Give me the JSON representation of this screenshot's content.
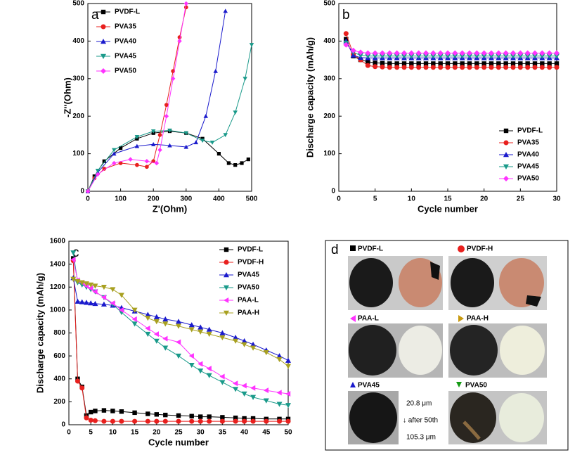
{
  "chart_data": [
    {
      "type": "line",
      "panel_label": "a",
      "x_label": "Z'(Ohm)",
      "y_label": "-Z''(Ohm)",
      "xlim": [
        0,
        500
      ],
      "ylim": [
        0,
        500
      ],
      "xticks": [
        0,
        100,
        200,
        300,
        400,
        500
      ],
      "yticks": [
        0,
        100,
        200,
        300,
        400,
        500
      ],
      "legend": "upper left",
      "series": [
        {
          "name": "PVDF-L",
          "color": "#000000",
          "marker": "square",
          "x": [
            0,
            20,
            50,
            100,
            150,
            200,
            250,
            300,
            350,
            400,
            430,
            450,
            470,
            490
          ],
          "values": [
            0,
            40,
            80,
            115,
            140,
            155,
            160,
            155,
            140,
            100,
            75,
            70,
            75,
            85
          ]
        },
        {
          "name": "PVA35",
          "color": "#e8201e",
          "marker": "circle",
          "x": [
            0,
            20,
            50,
            100,
            150,
            180,
            200,
            220,
            240,
            260,
            280,
            300
          ],
          "values": [
            0,
            35,
            60,
            75,
            70,
            65,
            80,
            150,
            230,
            320,
            410,
            490
          ]
        },
        {
          "name": "PVA40",
          "color": "#1a1acc",
          "marker": "triangle-up",
          "x": [
            0,
            30,
            80,
            150,
            200,
            250,
            300,
            330,
            360,
            390,
            420
          ],
          "values": [
            0,
            50,
            100,
            120,
            125,
            122,
            118,
            130,
            200,
            320,
            480
          ]
        },
        {
          "name": "PVA45",
          "color": "#1a9a8a",
          "marker": "triangle-down",
          "x": [
            0,
            30,
            80,
            150,
            200,
            250,
            300,
            350,
            380,
            420,
            450,
            480,
            500
          ],
          "values": [
            0,
            55,
            110,
            145,
            160,
            162,
            155,
            135,
            130,
            150,
            210,
            300,
            390
          ]
        },
        {
          "name": "PVA50",
          "color": "#ff33ff",
          "marker": "diamond",
          "x": [
            0,
            30,
            80,
            130,
            180,
            210,
            220,
            240,
            260,
            280,
            300
          ],
          "values": [
            0,
            45,
            75,
            85,
            80,
            75,
            110,
            200,
            300,
            400,
            500
          ]
        }
      ]
    },
    {
      "type": "line",
      "panel_label": "b",
      "x_label": "Cycle number",
      "y_label": "Discharge capacity (mAh/g)",
      "xlim": [
        0,
        30
      ],
      "ylim": [
        0,
        500
      ],
      "xticks": [
        0,
        5,
        10,
        15,
        20,
        25,
        30
      ],
      "yticks": [
        0,
        100,
        200,
        300,
        400,
        500
      ],
      "legend": "lower right",
      "x": [
        1,
        2,
        3,
        4,
        5,
        6,
        7,
        8,
        9,
        10,
        11,
        12,
        13,
        14,
        15,
        16,
        17,
        18,
        19,
        20,
        21,
        22,
        23,
        24,
        25,
        26,
        27,
        28,
        29,
        30
      ],
      "series": [
        {
          "name": "PVDF-L",
          "color": "#000000",
          "marker": "square",
          "values": [
            405,
            360,
            350,
            345,
            342,
            341,
            340,
            340,
            340,
            340,
            340,
            340,
            340,
            340,
            340,
            340,
            340,
            340,
            340,
            340,
            340,
            340,
            340,
            340,
            340,
            340,
            340,
            340,
            340,
            340
          ]
        },
        {
          "name": "PVA35",
          "color": "#e8201e",
          "marker": "circle",
          "values": [
            420,
            365,
            350,
            335,
            332,
            331,
            330,
            330,
            330,
            330,
            330,
            330,
            330,
            330,
            330,
            330,
            330,
            330,
            330,
            330,
            330,
            330,
            330,
            330,
            330,
            330,
            330,
            330,
            330,
            330
          ]
        },
        {
          "name": "PVA40",
          "color": "#1a1acc",
          "marker": "triangle-up",
          "values": [
            400,
            362,
            356,
            355,
            355,
            355,
            355,
            355,
            355,
            355,
            355,
            355,
            355,
            355,
            355,
            355,
            355,
            355,
            355,
            355,
            355,
            355,
            355,
            355,
            355,
            355,
            355,
            355,
            355,
            355
          ]
        },
        {
          "name": "PVA45",
          "color": "#1a9a8a",
          "marker": "triangle-down",
          "values": [
            395,
            370,
            362,
            360,
            360,
            360,
            360,
            360,
            360,
            360,
            360,
            360,
            360,
            360,
            360,
            360,
            360,
            360,
            360,
            360,
            360,
            360,
            360,
            360,
            360,
            360,
            360,
            360,
            360,
            360
          ]
        },
        {
          "name": "PVA50",
          "color": "#ff33ff",
          "marker": "diamond",
          "values": [
            390,
            375,
            370,
            368,
            368,
            368,
            368,
            368,
            368,
            368,
            368,
            368,
            368,
            368,
            368,
            368,
            368,
            368,
            368,
            368,
            368,
            368,
            368,
            368,
            368,
            368,
            368,
            368,
            368,
            368
          ]
        }
      ]
    },
    {
      "type": "line",
      "panel_label": "c",
      "x_label": "Cycle number",
      "y_label": "Discharge capacity (mAh/g)",
      "xlim": [
        0,
        50
      ],
      "ylim": [
        0,
        1600
      ],
      "xticks": [
        0,
        5,
        10,
        15,
        20,
        25,
        30,
        35,
        40,
        45,
        50
      ],
      "yticks": [
        0,
        200,
        400,
        600,
        800,
        1000,
        1200,
        1400,
        1600
      ],
      "legend": "upper right",
      "x": [
        1,
        2,
        3,
        4,
        5,
        6,
        8,
        10,
        12,
        15,
        18,
        20,
        22,
        25,
        28,
        30,
        32,
        35,
        38,
        40,
        42,
        45,
        48,
        50
      ],
      "series": [
        {
          "name": "PVDF-L",
          "color": "#000000",
          "marker": "square",
          "values": [
            1450,
            400,
            330,
            80,
            110,
            120,
            125,
            120,
            115,
            105,
            95,
            90,
            85,
            80,
            75,
            70,
            70,
            65,
            60,
            55,
            55,
            50,
            50,
            50
          ]
        },
        {
          "name": "PVDF-H",
          "color": "#e8201e",
          "marker": "circle",
          "values": [
            1430,
            380,
            320,
            60,
            40,
            35,
            30,
            30,
            30,
            30,
            30,
            30,
            30,
            30,
            30,
            30,
            30,
            30,
            30,
            30,
            30,
            30,
            30,
            30
          ]
        },
        {
          "name": "PVA45",
          "color": "#1a1acc",
          "marker": "triangle-up",
          "values": [
            1280,
            1075,
            1070,
            1065,
            1060,
            1055,
            1050,
            1040,
            1020,
            990,
            960,
            940,
            920,
            900,
            870,
            850,
            830,
            800,
            760,
            730,
            700,
            650,
            600,
            560
          ]
        },
        {
          "name": "PVA50",
          "color": "#1a9a8a",
          "marker": "triangle-down",
          "values": [
            1500,
            1240,
            1220,
            1200,
            1180,
            1160,
            1110,
            1050,
            980,
            880,
            790,
            730,
            670,
            600,
            520,
            470,
            430,
            370,
            310,
            270,
            240,
            210,
            180,
            170
          ]
        },
        {
          "name": "PAA-L",
          "color": "#ff33ff",
          "marker": "triangle-left",
          "values": [
            1440,
            1260,
            1240,
            1210,
            1190,
            1160,
            1110,
            1060,
            1000,
            920,
            840,
            790,
            750,
            720,
            600,
            530,
            490,
            420,
            360,
            340,
            320,
            300,
            280,
            270
          ]
        },
        {
          "name": "PAA-H",
          "color": "#a8a020",
          "marker": "triangle-down",
          "values": [
            1270,
            1250,
            1240,
            1230,
            1220,
            1210,
            1200,
            1180,
            1130,
            1000,
            930,
            900,
            880,
            860,
            830,
            810,
            790,
            760,
            730,
            700,
            670,
            630,
            570,
            510
          ]
        }
      ]
    }
  ],
  "photo_panel": {
    "label": "d",
    "items": [
      {
        "label": "PVDF-L"
      },
      {
        "label": "PVDF-H"
      },
      {
        "label": "PAA-L"
      },
      {
        "label": "PAA-H"
      },
      {
        "label": "PVA45"
      },
      {
        "label": "PVA50"
      }
    ],
    "annotations": [
      "20.8 μm",
      "↓ after 50th",
      "105.3 μm"
    ]
  }
}
